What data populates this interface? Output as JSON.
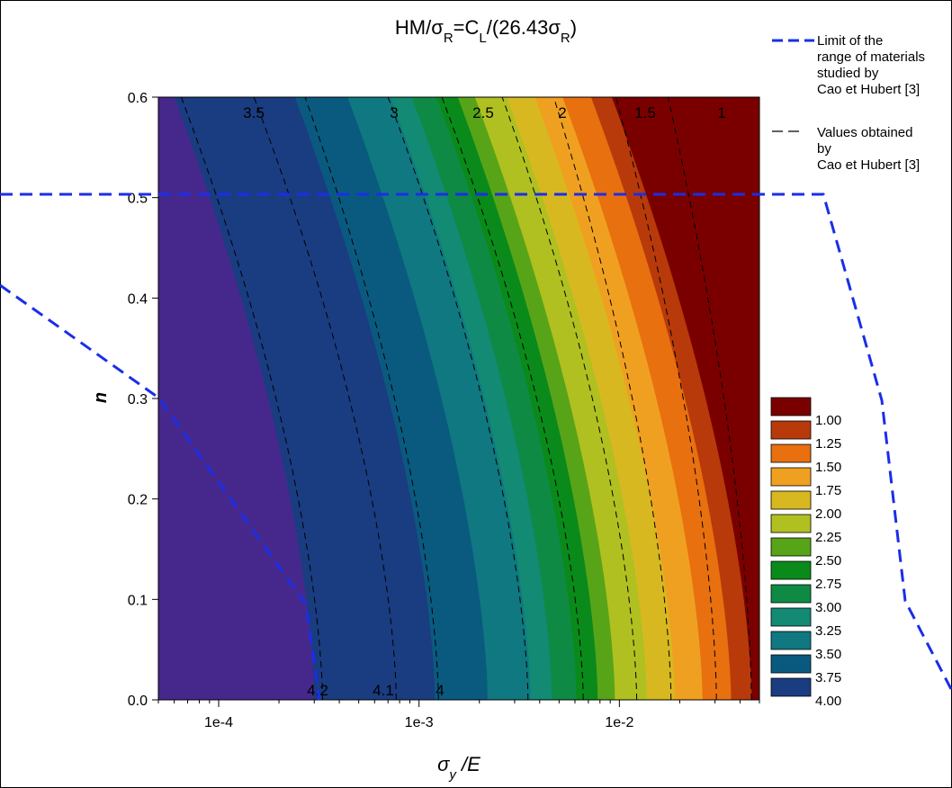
{
  "chart_data": {
    "type": "heatmap",
    "title": "HM/σR=CL/(26.43σR)",
    "xlabel": "σy /E",
    "ylabel": "n",
    "x_scale": "log",
    "xlim": [
      5e-05,
      0.05
    ],
    "ylim": [
      0,
      0.6
    ],
    "x_ticks": [
      "1e-4",
      "1e-3",
      "1e-2"
    ],
    "y_ticks": [
      "0.0",
      "0.1",
      "0.2",
      "0.3",
      "0.4",
      "0.5",
      "0.6"
    ],
    "legend_levels": [
      "1.00",
      "1.25",
      "1.50",
      "1.75",
      "2.00",
      "2.25",
      "2.50",
      "2.75",
      "3.00",
      "3.25",
      "3.50",
      "3.75",
      "4.00"
    ],
    "level_colors": [
      "#7a0000",
      "#b83a0a",
      "#e8700f",
      "#f0a020",
      "#d8b820",
      "#b0c020",
      "#58a418",
      "#0a8a1a",
      "#0e8a44",
      "#128a74",
      "#107880",
      "#0a5a80",
      "#1a3c80"
    ],
    "extra_region_color": "#46288c",
    "contour_bands_at_n0": [
      {
        "level": "4.25",
        "x_end": 0.0003
      },
      {
        "level": "4.00",
        "x_end": 0.0012
      },
      {
        "level": "3.75",
        "x_end": 0.0022
      },
      {
        "level": "3.50",
        "x_end": 0.0036
      },
      {
        "level": "3.25",
        "x_end": 0.0046
      },
      {
        "level": "3.00",
        "x_end": 0.0061
      },
      {
        "level": "2.75",
        "x_end": 0.0078
      },
      {
        "level": "2.50",
        "x_end": 0.0095
      },
      {
        "level": "2.25",
        "x_end": 0.0137
      },
      {
        "level": "2.00",
        "x_end": 0.0189
      },
      {
        "level": "1.75",
        "x_end": 0.026
      },
      {
        "level": "1.50",
        "x_end": 0.0361
      },
      {
        "level": "1.25",
        "x_end": 0.0458
      },
      {
        "level": "1.00",
        "x_end": 0.05
      }
    ],
    "reference_curves": [
      {
        "label": "4.2",
        "x_at_n0": 0.00033,
        "x_at_n06": 6.5e-05
      },
      {
        "label": "4.1",
        "x_at_n0": 0.00077,
        "x_at_n06": 0.00015
      },
      {
        "label": "4",
        "x_at_n0": 0.00125,
        "x_at_n06": 0.00027
      },
      {
        "label": "3.5",
        "x_at_n0": 0.0035,
        "x_at_n06": 0.0007
      },
      {
        "label": "3",
        "x_at_n0": 0.0066,
        "x_at_n06": 0.0013
      },
      {
        "label": "2.5",
        "x_at_n0": 0.0122,
        "x_at_n06": 0.0026
      },
      {
        "label": "2",
        "x_at_n0": 0.0181,
        "x_at_n06": 0.0047
      },
      {
        "label": "1.5",
        "x_at_n0": 0.0305,
        "x_at_n06": 0.0096
      },
      {
        "label": "1",
        "x_at_n0": 0.0456,
        "x_at_n06": 0.0175
      }
    ],
    "reference_curve_labels_top": [
      "3.5",
      "3",
      "2.5",
      "2",
      "1.5",
      "1"
    ],
    "reference_curve_labels_bottom": [
      "4.2",
      "4.1",
      "4"
    ],
    "limit_line_segments": [
      {
        "name": "upper",
        "points": [
          [
            2e-05,
            0.503
          ],
          [
            0.001,
            0.503
          ],
          [
            0.1,
            0.503
          ],
          [
            0.2,
            0.3
          ],
          [
            0.25,
            0.1
          ],
          [
            0.4,
            0.0
          ]
        ]
      },
      {
        "name": "lower",
        "points": [
          [
            2e-05,
            0.41
          ],
          [
            5e-05,
            0.3
          ],
          [
            0.0003,
            0.1
          ],
          [
            0.00035,
            0.0
          ]
        ]
      }
    ],
    "legend_entries": [
      {
        "style": "blue-dashed",
        "label": "Limit of the range of materials studied by Cao et Hubert [3]"
      },
      {
        "style": "black-dashed",
        "label": "Values obtained by Cao et Hubert [3]"
      }
    ]
  }
}
